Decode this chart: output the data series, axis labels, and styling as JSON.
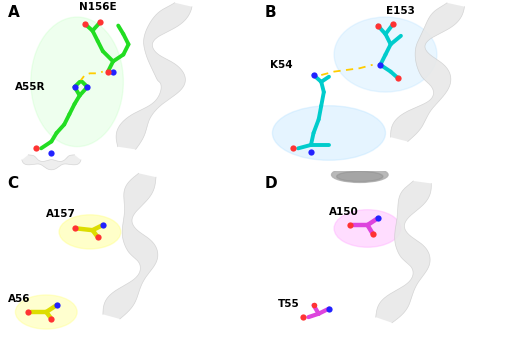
{
  "background": "#ffffff",
  "panels": {
    "A": {
      "label": "A",
      "residue_bottom_label": "A55R",
      "residue_top_label": "N156E",
      "stick_color": "#22dd22",
      "atom_N": "#2222ff",
      "atom_O": "#ff3333",
      "dash_color": "#ffcc00",
      "glow_color": "#ccffcc",
      "has_dashes": true
    },
    "B": {
      "label": "B",
      "residue_bottom_label": "K54",
      "residue_top_label": "E153",
      "stick_color": "#00cccc",
      "atom_N": "#2222ff",
      "atom_O": "#ff3333",
      "dash_color": "#ffcc00",
      "glow_color": "#aaddff",
      "has_dashes": true
    },
    "C": {
      "label": "C",
      "residue_bottom_label": "A56",
      "residue_top_label": "A157",
      "stick_color": "#dddd00",
      "atom_N": "#2222ff",
      "atom_O": "#ff3333",
      "glow_color": "#ffffaa",
      "has_dashes": false
    },
    "D": {
      "label": "D",
      "residue_bottom_label": "T55",
      "residue_top_label": "A150",
      "stick_color": "#dd44dd",
      "atom_N": "#2222ff",
      "atom_O": "#ff3333",
      "glow_color": "#ffaaff",
      "has_dashes": false,
      "has_dome": true
    }
  }
}
